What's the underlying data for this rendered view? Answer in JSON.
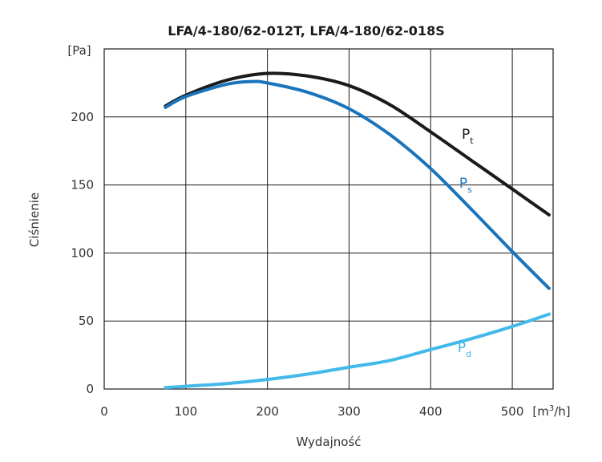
{
  "chart_data": {
    "type": "line",
    "title": "LFA/4-180/62-012T, LFA/4-180/62-018S",
    "xlabel": "Wydajność",
    "ylabel": "Ciśnienie",
    "x_unit": {
      "base": "[m",
      "sup": "3",
      "tail": "/h]"
    },
    "y_unit": "[Pa]",
    "xlim": [
      0,
      550
    ],
    "ylim": [
      0,
      250
    ],
    "x_ticks": [
      0,
      100,
      200,
      300,
      400,
      500
    ],
    "y_ticks": [
      0,
      50,
      100,
      150,
      200
    ],
    "grid": true,
    "series": [
      {
        "name": "Pt",
        "label_main": "P",
        "label_sub": "t",
        "color": "#1a1a1a",
        "points": [
          [
            75,
            208
          ],
          [
            100,
            216
          ],
          [
            150,
            227
          ],
          [
            200,
            232
          ],
          [
            250,
            230
          ],
          [
            300,
            223
          ],
          [
            350,
            209
          ],
          [
            400,
            189
          ],
          [
            450,
            168
          ],
          [
            500,
            147
          ],
          [
            545,
            128
          ]
        ]
      },
      {
        "name": "Ps",
        "label_main": "P",
        "label_sub": "s",
        "color": "#1a74bb",
        "points": [
          [
            75,
            207
          ],
          [
            100,
            215
          ],
          [
            150,
            224
          ],
          [
            180,
            226
          ],
          [
            200,
            225
          ],
          [
            250,
            218
          ],
          [
            300,
            206
          ],
          [
            350,
            187
          ],
          [
            400,
            162
          ],
          [
            450,
            132
          ],
          [
            500,
            101
          ],
          [
            545,
            74
          ]
        ]
      },
      {
        "name": "Pd",
        "label_main": "P",
        "label_sub": "d",
        "color": "#43b9ea",
        "points": [
          [
            75,
            1
          ],
          [
            100,
            2
          ],
          [
            150,
            4
          ],
          [
            200,
            7
          ],
          [
            250,
            11
          ],
          [
            300,
            16
          ],
          [
            350,
            21
          ],
          [
            400,
            29
          ],
          [
            450,
            37
          ],
          [
            500,
            46
          ],
          [
            545,
            55
          ]
        ]
      }
    ]
  }
}
